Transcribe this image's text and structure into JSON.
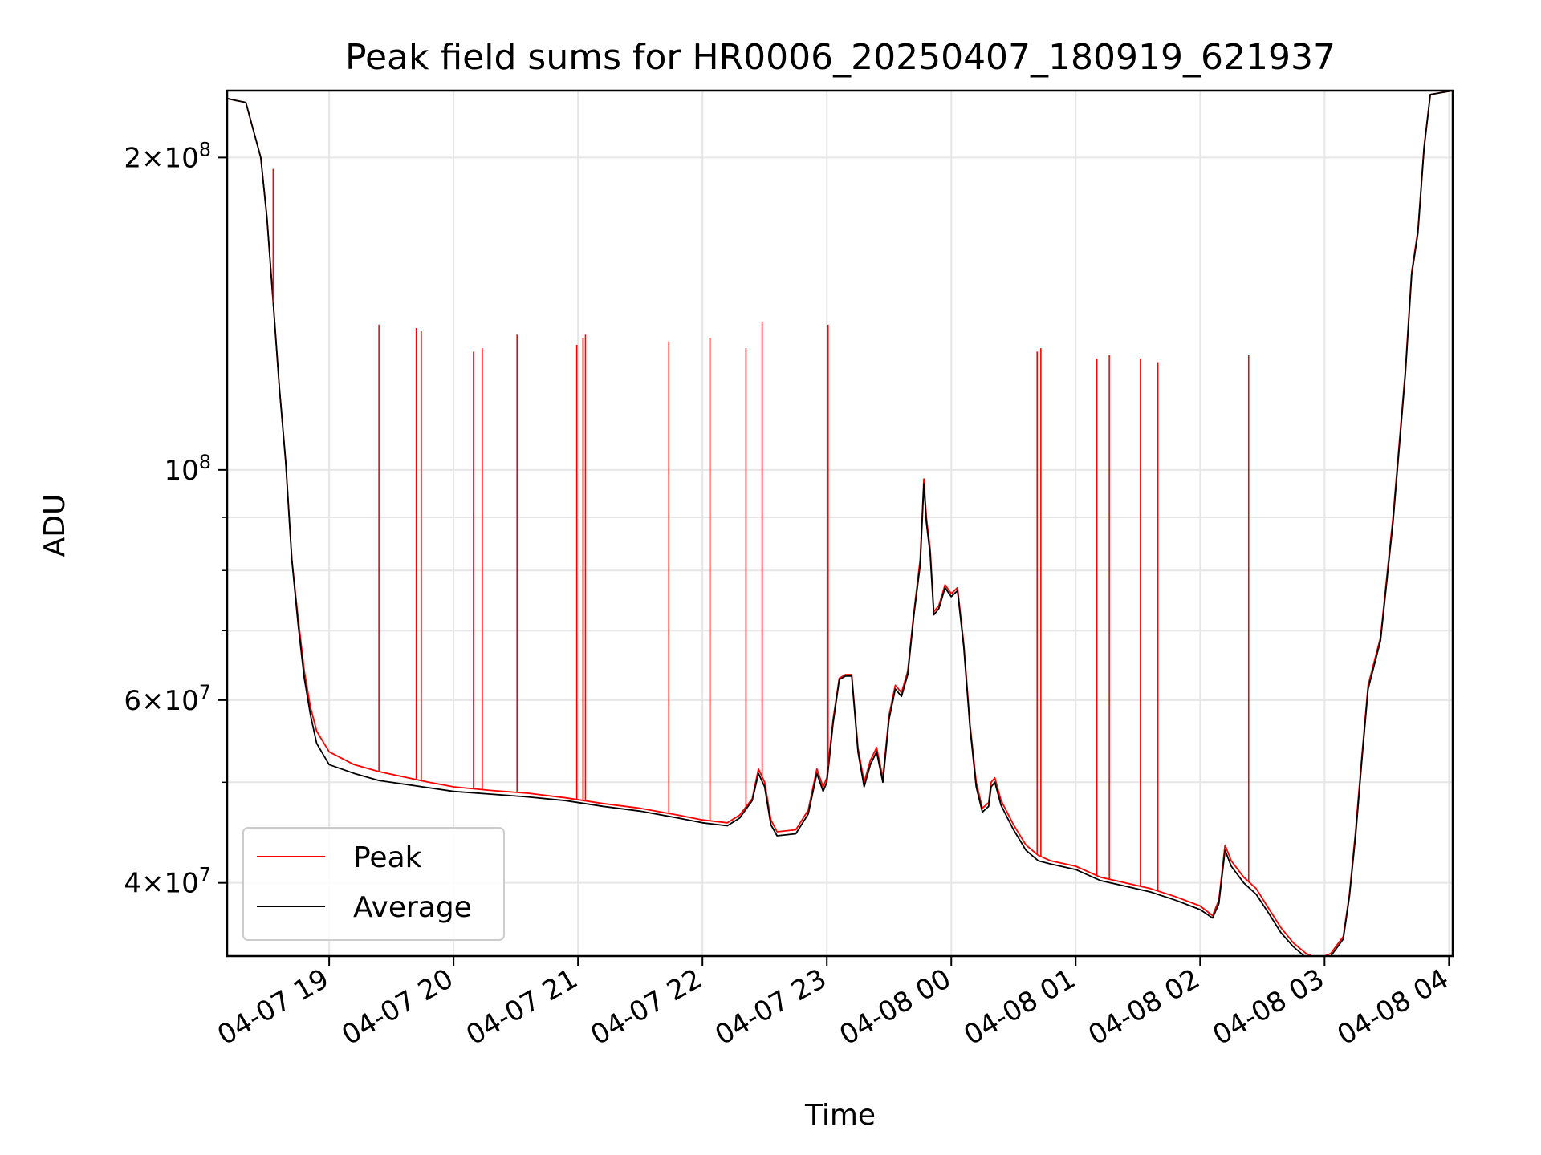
{
  "chart_data": {
    "type": "line",
    "title": "Peak field sums for HR0006_20250407_180919_621937",
    "xlabel": "Time",
    "ylabel": "ADU",
    "yscale": "log",
    "ylim": [
      34000000,
      232000000
    ],
    "xlim_hours_since_2025-04-07T00:00": [
      18.18,
      28.03
    ],
    "grid": true,
    "legend_position": "lower-left",
    "x_ticks": [
      {
        "hours": 19,
        "label": "04-07 19"
      },
      {
        "hours": 20,
        "label": "04-07 20"
      },
      {
        "hours": 21,
        "label": "04-07 21"
      },
      {
        "hours": 22,
        "label": "04-07 22"
      },
      {
        "hours": 23,
        "label": "04-07 23"
      },
      {
        "hours": 24,
        "label": "04-08 00"
      },
      {
        "hours": 25,
        "label": "04-08 01"
      },
      {
        "hours": 26,
        "label": "04-08 02"
      },
      {
        "hours": 27,
        "label": "04-08 03"
      },
      {
        "hours": 28,
        "label": "04-08 04"
      }
    ],
    "y_ticks": [
      {
        "value": 40000000,
        "mantissa": "4",
        "exponent": "7"
      },
      {
        "value": 60000000,
        "mantissa": "6",
        "exponent": "7"
      },
      {
        "value": 100000000,
        "mantissa": "",
        "exponent": "8"
      },
      {
        "value": 200000000,
        "mantissa": "2",
        "exponent": "8"
      }
    ],
    "y_minor_ticks": [
      50000000,
      70000000,
      80000000,
      90000000
    ],
    "series": [
      {
        "name": "Peak",
        "color": "#ff0000",
        "points": [
          [
            18.18,
            228000000.0
          ],
          [
            18.25,
            227000000.0
          ],
          [
            18.33,
            226000000.0
          ],
          [
            18.45,
            200000000.0
          ],
          [
            18.5,
            175000000.0
          ],
          [
            18.55,
            145000000.0
          ],
          [
            18.6,
            120000000.0
          ],
          [
            18.65,
            102000000.0
          ],
          [
            18.7,
            82000000.0
          ],
          [
            18.75,
            72000000.0
          ],
          [
            18.8,
            64000000.0
          ],
          [
            18.85,
            59000000.0
          ],
          [
            18.9,
            56000000.0
          ],
          [
            19.0,
            53500000.0
          ],
          [
            19.2,
            52000000.0
          ],
          [
            19.4,
            51200000.0
          ],
          [
            19.6,
            50600000.0
          ],
          [
            19.8,
            50000000.0
          ],
          [
            20.0,
            49500000.0
          ],
          [
            20.3,
            49100000.0
          ],
          [
            20.6,
            48800000.0
          ],
          [
            20.9,
            48300000.0
          ],
          [
            21.2,
            47700000.0
          ],
          [
            21.5,
            47200000.0
          ],
          [
            21.8,
            46500000.0
          ],
          [
            22.0,
            46000000.0
          ],
          [
            22.2,
            45700000.0
          ],
          [
            22.3,
            46500000.0
          ],
          [
            22.4,
            48200000.0
          ],
          [
            22.45,
            51500000.0
          ],
          [
            22.5,
            50000000.0
          ],
          [
            22.55,
            46000000.0
          ],
          [
            22.6,
            44800000.0
          ],
          [
            22.75,
            45000000.0
          ],
          [
            22.85,
            47000000.0
          ],
          [
            22.92,
            51500000.0
          ],
          [
            22.97,
            49500000.0
          ],
          [
            23.0,
            50500000.0
          ],
          [
            23.05,
            57500000.0
          ],
          [
            23.1,
            63000000.0
          ],
          [
            23.15,
            63500000.0
          ],
          [
            23.2,
            63500000.0
          ],
          [
            23.25,
            54000000.0
          ],
          [
            23.3,
            50000000.0
          ],
          [
            23.35,
            52500000.0
          ],
          [
            23.4,
            54000000.0
          ],
          [
            23.45,
            50500000.0
          ],
          [
            23.5,
            58000000.0
          ],
          [
            23.55,
            62000000.0
          ],
          [
            23.6,
            61000000.0
          ],
          [
            23.65,
            64000000.0
          ],
          [
            23.7,
            73000000.0
          ],
          [
            23.75,
            82000000.0
          ],
          [
            23.78,
            98000000.0
          ],
          [
            23.8,
            90000000.0
          ],
          [
            23.83,
            84000000.0
          ],
          [
            23.86,
            73000000.0
          ],
          [
            23.9,
            74000000.0
          ],
          [
            23.95,
            77500000.0
          ],
          [
            24.0,
            76000000.0
          ],
          [
            24.05,
            77000000.0
          ],
          [
            24.1,
            68000000.0
          ],
          [
            24.15,
            57000000.0
          ],
          [
            24.2,
            50000000.0
          ],
          [
            24.25,
            47200000.0
          ],
          [
            24.3,
            47800000.0
          ],
          [
            24.32,
            50000000.0
          ],
          [
            24.35,
            50500000.0
          ],
          [
            24.4,
            48000000.0
          ],
          [
            24.5,
            45500000.0
          ],
          [
            24.6,
            43500000.0
          ],
          [
            24.7,
            42500000.0
          ],
          [
            24.8,
            42000000.0
          ],
          [
            25.0,
            41500000.0
          ],
          [
            25.2,
            40500000.0
          ],
          [
            25.4,
            40000000.0
          ],
          [
            25.6,
            39500000.0
          ],
          [
            25.8,
            38800000.0
          ],
          [
            26.0,
            38000000.0
          ],
          [
            26.1,
            37200000.0
          ],
          [
            26.15,
            38500000.0
          ],
          [
            26.2,
            43500000.0
          ],
          [
            26.25,
            42000000.0
          ],
          [
            26.35,
            40500000.0
          ],
          [
            26.45,
            39500000.0
          ],
          [
            26.55,
            37800000.0
          ],
          [
            26.65,
            36200000.0
          ],
          [
            26.75,
            35000000.0
          ],
          [
            26.85,
            34200000.0
          ],
          [
            26.95,
            33800000.0
          ],
          [
            27.05,
            34200000.0
          ],
          [
            27.15,
            35500000.0
          ],
          [
            27.2,
            39000000.0
          ],
          [
            27.25,
            45000000.0
          ],
          [
            27.3,
            53000000.0
          ],
          [
            27.35,
            62000000.0
          ],
          [
            27.45,
            69000000.0
          ],
          [
            27.55,
            90000000.0
          ],
          [
            27.65,
            125000000.0
          ],
          [
            27.7,
            155000000.0
          ],
          [
            27.75,
            170000000.0
          ],
          [
            27.8,
            205000000.0
          ],
          [
            27.85,
            230000000.0
          ],
          [
            28.03,
            232000000.0
          ]
        ]
      },
      {
        "name": "Average",
        "color": "#000000",
        "points": [
          [
            18.18,
            228000000.0
          ],
          [
            18.25,
            227000000.0
          ],
          [
            18.33,
            226000000.0
          ],
          [
            18.45,
            200000000.0
          ],
          [
            18.5,
            175000000.0
          ],
          [
            18.55,
            145000000.0
          ],
          [
            18.6,
            120000000.0
          ],
          [
            18.65,
            102000000.0
          ],
          [
            18.7,
            82000000.0
          ],
          [
            18.75,
            71000000.0
          ],
          [
            18.8,
            63000000.0
          ],
          [
            18.85,
            58000000.0
          ],
          [
            18.9,
            54500000.0
          ],
          [
            19.0,
            52000000.0
          ],
          [
            19.2,
            51000000.0
          ],
          [
            19.4,
            50200000.0
          ],
          [
            19.6,
            49800000.0
          ],
          [
            19.8,
            49400000.0
          ],
          [
            20.0,
            49000000.0
          ],
          [
            20.3,
            48700000.0
          ],
          [
            20.6,
            48400000.0
          ],
          [
            20.9,
            48000000.0
          ],
          [
            21.2,
            47400000.0
          ],
          [
            21.5,
            46900000.0
          ],
          [
            21.8,
            46200000.0
          ],
          [
            22.0,
            45700000.0
          ],
          [
            22.2,
            45400000.0
          ],
          [
            22.3,
            46200000.0
          ],
          [
            22.4,
            48000000.0
          ],
          [
            22.45,
            51000000.0
          ],
          [
            22.5,
            49500000.0
          ],
          [
            22.55,
            45500000.0
          ],
          [
            22.6,
            44400000.0
          ],
          [
            22.75,
            44600000.0
          ],
          [
            22.85,
            46600000.0
          ],
          [
            22.92,
            51000000.0
          ],
          [
            22.97,
            49000000.0
          ],
          [
            23.0,
            50000000.0
          ],
          [
            23.05,
            57000000.0
          ],
          [
            23.1,
            62800000.0
          ],
          [
            23.15,
            63300000.0
          ],
          [
            23.2,
            63300000.0
          ],
          [
            23.25,
            53500000.0
          ],
          [
            23.3,
            49500000.0
          ],
          [
            23.35,
            52000000.0
          ],
          [
            23.4,
            53500000.0
          ],
          [
            23.45,
            50000000.0
          ],
          [
            23.5,
            57500000.0
          ],
          [
            23.55,
            61500000.0
          ],
          [
            23.6,
            60500000.0
          ],
          [
            23.65,
            63500000.0
          ],
          [
            23.7,
            72500000.0
          ],
          [
            23.75,
            81000000.0
          ],
          [
            23.78,
            97000000.0
          ],
          [
            23.8,
            89000000.0
          ],
          [
            23.83,
            83000000.0
          ],
          [
            23.86,
            72500000.0
          ],
          [
            23.9,
            73500000.0
          ],
          [
            23.95,
            77000000.0
          ],
          [
            24.0,
            75500000.0
          ],
          [
            24.05,
            76500000.0
          ],
          [
            24.1,
            67500000.0
          ],
          [
            24.15,
            56500000.0
          ],
          [
            24.2,
            49500000.0
          ],
          [
            24.25,
            46800000.0
          ],
          [
            24.3,
            47400000.0
          ],
          [
            24.32,
            49500000.0
          ],
          [
            24.35,
            50000000.0
          ],
          [
            24.4,
            47500000.0
          ],
          [
            24.5,
            45000000.0
          ],
          [
            24.6,
            43000000.0
          ],
          [
            24.7,
            42000000.0
          ],
          [
            24.8,
            41700000.0
          ],
          [
            25.0,
            41200000.0
          ],
          [
            25.2,
            40200000.0
          ],
          [
            25.4,
            39700000.0
          ],
          [
            25.6,
            39200000.0
          ],
          [
            25.8,
            38500000.0
          ],
          [
            26.0,
            37700000.0
          ],
          [
            26.1,
            37000000.0
          ],
          [
            26.15,
            38200000.0
          ],
          [
            26.2,
            43000000.0
          ],
          [
            26.25,
            41500000.0
          ],
          [
            26.35,
            40000000.0
          ],
          [
            26.45,
            39000000.0
          ],
          [
            26.55,
            37400000.0
          ],
          [
            26.65,
            35800000.0
          ],
          [
            26.75,
            34700000.0
          ],
          [
            26.85,
            33900000.0
          ],
          [
            26.95,
            33600000.0
          ],
          [
            27.05,
            34000000.0
          ],
          [
            27.15,
            35300000.0
          ],
          [
            27.2,
            38800000.0
          ],
          [
            27.25,
            44500000.0
          ],
          [
            27.3,
            52500000.0
          ],
          [
            27.35,
            61500000.0
          ],
          [
            27.45,
            68500000.0
          ],
          [
            27.55,
            89000000.0
          ],
          [
            27.65,
            124000000.0
          ],
          [
            27.7,
            154000000.0
          ],
          [
            27.75,
            169000000.0
          ],
          [
            27.8,
            204000000.0
          ],
          [
            27.85,
            230000000.0
          ],
          [
            28.03,
            232000000.0
          ]
        ]
      }
    ],
    "peak_spikes": [
      [
        18.55,
        195000000.0
      ],
      [
        19.4,
        138000000.0
      ],
      [
        19.7,
        137000000.0
      ],
      [
        19.74,
        136000000.0
      ],
      [
        20.16,
        130000000.0
      ],
      [
        20.23,
        131000000.0
      ],
      [
        20.51,
        135000000.0
      ],
      [
        20.99,
        132000000.0
      ],
      [
        21.04,
        134000000.0
      ],
      [
        21.06,
        135000000.0
      ],
      [
        21.73,
        133000000.0
      ],
      [
        22.06,
        134000000.0
      ],
      [
        22.35,
        131000000.0
      ],
      [
        22.48,
        139000000.0
      ],
      [
        23.01,
        138000000.0
      ],
      [
        24.69,
        130000000.0
      ],
      [
        24.72,
        131000000.0
      ],
      [
        25.17,
        128000000.0
      ],
      [
        25.27,
        129000000.0
      ],
      [
        25.52,
        128000000.0
      ],
      [
        25.66,
        127000000.0
      ],
      [
        26.39,
        129000000.0
      ]
    ]
  }
}
